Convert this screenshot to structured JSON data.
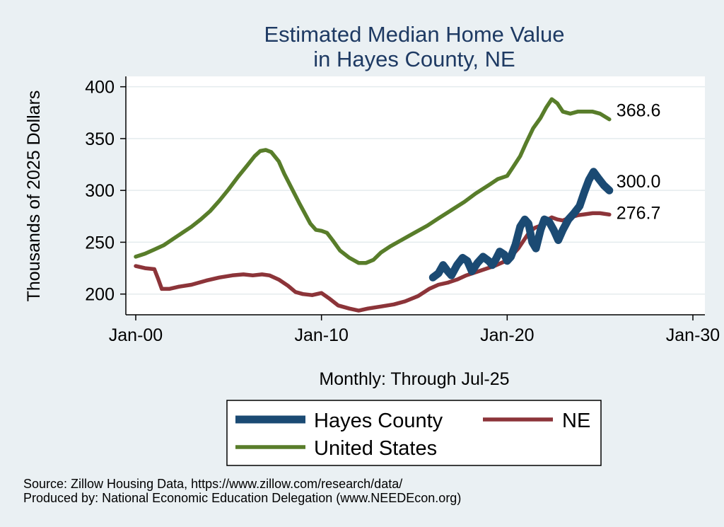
{
  "chart_data": {
    "type": "line",
    "title": [
      "Estimated Median Home Value",
      "in Hayes County, NE"
    ],
    "ylabel": "Thousands of 2025 Dollars",
    "xlabel": "Monthly: Through Jul-25",
    "ylim": [
      180,
      410
    ],
    "xlim": [
      2000,
      2030
    ],
    "yticks": [
      200,
      250,
      300,
      350,
      400
    ],
    "xticks": [
      {
        "value": 2000,
        "label": "Jan-00"
      },
      {
        "value": 2010,
        "label": "Jan-10"
      },
      {
        "value": 2020,
        "label": "Jan-20"
      },
      {
        "value": 2030,
        "label": "Jan-30"
      }
    ],
    "grid": true,
    "series": [
      {
        "name": "Hayes County",
        "color": "#1b4a73",
        "width": 11,
        "end_label": "300.0",
        "points": [
          [
            2016.0,
            216
          ],
          [
            2016.3,
            220
          ],
          [
            2016.55,
            228
          ],
          [
            2016.8,
            222
          ],
          [
            2017.0,
            218
          ],
          [
            2017.3,
            228
          ],
          [
            2017.6,
            235
          ],
          [
            2017.85,
            232
          ],
          [
            2018.1,
            222
          ],
          [
            2018.4,
            230
          ],
          [
            2018.7,
            236
          ],
          [
            2019.0,
            232
          ],
          [
            2019.2,
            228
          ],
          [
            2019.4,
            234
          ],
          [
            2019.6,
            241
          ],
          [
            2019.85,
            238
          ],
          [
            2020.0,
            232
          ],
          [
            2020.2,
            236
          ],
          [
            2020.45,
            248
          ],
          [
            2020.7,
            265
          ],
          [
            2020.95,
            272
          ],
          [
            2021.15,
            268
          ],
          [
            2021.35,
            250
          ],
          [
            2021.55,
            244
          ],
          [
            2021.8,
            262
          ],
          [
            2022.0,
            272
          ],
          [
            2022.25,
            270
          ],
          [
            2022.5,
            262
          ],
          [
            2022.75,
            252
          ],
          [
            2023.0,
            262
          ],
          [
            2023.3,
            272
          ],
          [
            2023.6,
            278
          ],
          [
            2023.9,
            285
          ],
          [
            2024.15,
            298
          ],
          [
            2024.4,
            310
          ],
          [
            2024.65,
            318
          ],
          [
            2024.9,
            312
          ],
          [
            2025.2,
            305
          ],
          [
            2025.5,
            300
          ]
        ]
      },
      {
        "name": "NE",
        "color": "#8c3439",
        "width": 5.5,
        "end_label": "276.7",
        "points": [
          [
            2000.0,
            227
          ],
          [
            2000.5,
            225
          ],
          [
            2001.0,
            224
          ],
          [
            2001.2,
            215
          ],
          [
            2001.4,
            205
          ],
          [
            2001.8,
            205
          ],
          [
            2002.3,
            207
          ],
          [
            2003.0,
            209
          ],
          [
            2003.8,
            213
          ],
          [
            2004.5,
            216
          ],
          [
            2005.2,
            218
          ],
          [
            2005.8,
            219
          ],
          [
            2006.3,
            218
          ],
          [
            2006.8,
            219
          ],
          [
            2007.2,
            218
          ],
          [
            2007.7,
            214
          ],
          [
            2008.2,
            208
          ],
          [
            2008.6,
            202
          ],
          [
            2009.0,
            200
          ],
          [
            2009.5,
            199
          ],
          [
            2010.0,
            201
          ],
          [
            2010.4,
            196
          ],
          [
            2010.9,
            189
          ],
          [
            2011.5,
            186
          ],
          [
            2012.0,
            184
          ],
          [
            2012.5,
            186
          ],
          [
            2013.2,
            188
          ],
          [
            2013.9,
            190
          ],
          [
            2014.5,
            193
          ],
          [
            2015.2,
            198
          ],
          [
            2015.8,
            205
          ],
          [
            2016.3,
            209
          ],
          [
            2016.8,
            211
          ],
          [
            2017.3,
            214
          ],
          [
            2017.8,
            218
          ],
          [
            2018.3,
            221
          ],
          [
            2018.8,
            224
          ],
          [
            2019.3,
            227
          ],
          [
            2019.8,
            231
          ],
          [
            2020.2,
            236
          ],
          [
            2020.6,
            244
          ],
          [
            2020.9,
            252
          ],
          [
            2021.2,
            260
          ],
          [
            2021.5,
            264
          ],
          [
            2021.8,
            266
          ],
          [
            2022.1,
            271
          ],
          [
            2022.4,
            274
          ],
          [
            2022.7,
            272
          ],
          [
            2023.0,
            271
          ],
          [
            2023.4,
            274
          ],
          [
            2023.8,
            276
          ],
          [
            2024.2,
            277
          ],
          [
            2024.6,
            278
          ],
          [
            2025.0,
            278
          ],
          [
            2025.5,
            276.7
          ]
        ]
      },
      {
        "name": "United States",
        "color": "#587d2a",
        "width": 5.5,
        "end_label": "368.6",
        "points": [
          [
            2000.0,
            236
          ],
          [
            2000.5,
            239
          ],
          [
            2001.0,
            243
          ],
          [
            2001.5,
            247
          ],
          [
            2002.0,
            253
          ],
          [
            2002.5,
            259
          ],
          [
            2003.0,
            265
          ],
          [
            2003.5,
            272
          ],
          [
            2004.0,
            280
          ],
          [
            2004.5,
            290
          ],
          [
            2005.0,
            301
          ],
          [
            2005.5,
            313
          ],
          [
            2006.0,
            324
          ],
          [
            2006.4,
            333
          ],
          [
            2006.7,
            338
          ],
          [
            2007.0,
            339
          ],
          [
            2007.3,
            337
          ],
          [
            2007.7,
            328
          ],
          [
            2008.0,
            316
          ],
          [
            2008.4,
            302
          ],
          [
            2008.8,
            288
          ],
          [
            2009.1,
            278
          ],
          [
            2009.4,
            268
          ],
          [
            2009.7,
            262
          ],
          [
            2010.0,
            261
          ],
          [
            2010.3,
            259
          ],
          [
            2010.6,
            252
          ],
          [
            2011.0,
            242
          ],
          [
            2011.5,
            235
          ],
          [
            2012.0,
            230
          ],
          [
            2012.4,
            230
          ],
          [
            2012.8,
            233
          ],
          [
            2013.2,
            240
          ],
          [
            2013.7,
            246
          ],
          [
            2014.3,
            252
          ],
          [
            2015.0,
            259
          ],
          [
            2015.7,
            266
          ],
          [
            2016.3,
            273
          ],
          [
            2017.0,
            281
          ],
          [
            2017.7,
            289
          ],
          [
            2018.3,
            297
          ],
          [
            2019.0,
            305
          ],
          [
            2019.5,
            311
          ],
          [
            2020.0,
            314
          ],
          [
            2020.3,
            322
          ],
          [
            2020.7,
            333
          ],
          [
            2021.0,
            345
          ],
          [
            2021.4,
            360
          ],
          [
            2021.8,
            370
          ],
          [
            2022.1,
            380
          ],
          [
            2022.4,
            388
          ],
          [
            2022.7,
            384
          ],
          [
            2023.0,
            376
          ],
          [
            2023.4,
            374
          ],
          [
            2023.8,
            376
          ],
          [
            2024.2,
            376
          ],
          [
            2024.6,
            376
          ],
          [
            2025.0,
            374
          ],
          [
            2025.5,
            368.6
          ]
        ]
      }
    ],
    "legend": {
      "position": "bottom",
      "entries": [
        "Hayes County",
        "NE",
        "United States"
      ]
    }
  },
  "footer": {
    "source": "Source: Zillow Housing Data, https://www.zillow.com/research/data/",
    "produced": "Produced by: National Economic Education Delegation (www.NEEDEcon.org)"
  }
}
